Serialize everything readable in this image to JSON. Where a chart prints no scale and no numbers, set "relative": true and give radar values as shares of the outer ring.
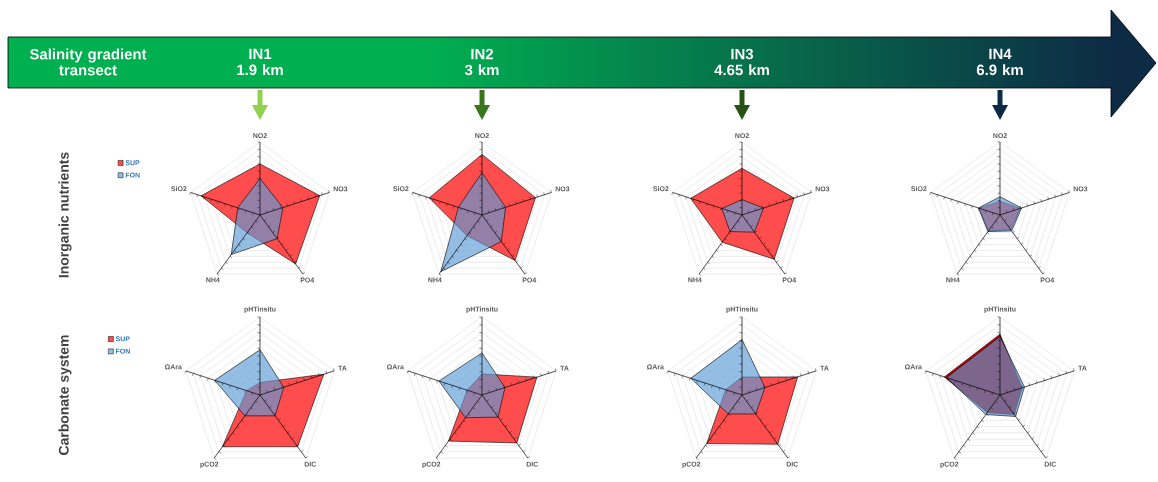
{
  "chart_data": [
    {
      "type": "other",
      "title": "Salinity gradient transect",
      "annotations": [
        "IN1 1.9 km",
        "IN2 3 km",
        "IN3 4.65 km",
        "IN4 6.9 km"
      ]
    },
    {
      "type": "radar",
      "ylabel": "Inorganic nutrients",
      "categories": [
        "NO2",
        "NO3",
        "PO4",
        "NH4",
        "SiO2"
      ],
      "relative": true,
      "grid": true,
      "legend": "top left",
      "series": [
        {
          "name": "SUP",
          "color": "#ff4d4d",
          "values": [
            0.7,
            0.86,
            0.83,
            0.3,
            0.85
          ]
        },
        {
          "name": "FON",
          "color": "#5b9bd5",
          "values": [
            0.5,
            0.33,
            0.4,
            0.67,
            0.32
          ]
        }
      ]
    },
    {
      "type": "radar",
      "categories": [
        "NO2",
        "NO3",
        "PO4",
        "NH4",
        "SiO2"
      ],
      "relative": true,
      "grid": true,
      "series": [
        {
          "color": "#ff4d4d",
          "values": [
            0.83,
            0.77,
            0.77,
            0.35,
            0.76
          ]
        },
        {
          "color": "#5b9bd5",
          "values": [
            0.58,
            0.34,
            0.45,
            0.96,
            0.34
          ]
        }
      ]
    },
    {
      "type": "radar",
      "categories": [
        "NO2",
        "NO3",
        "PO4",
        "NH4",
        "SiO2"
      ],
      "relative": true,
      "grid": true,
      "series": [
        {
          "color": "#ff4d4d",
          "values": [
            0.64,
            0.75,
            0.75,
            0.46,
            0.74
          ]
        },
        {
          "color": "#5b9bd5",
          "values": [
            0.21,
            0.31,
            0.29,
            0.28,
            0.29
          ]
        }
      ]
    },
    {
      "type": "radar",
      "categories": [
        "NO2",
        "NO3",
        "PO4",
        "NH4",
        "SiO2"
      ],
      "relative": true,
      "grid": true,
      "series": [
        {
          "color": "#ff4d4d",
          "values": [
            0.19,
            0.29,
            0.25,
            0.27,
            0.3
          ]
        },
        {
          "color": "#5b9bd5",
          "values": [
            0.25,
            0.31,
            0.27,
            0.28,
            0.31
          ]
        }
      ]
    },
    {
      "type": "radar",
      "ylabel": "Carbonate system",
      "categories": [
        "pHTinsitu",
        "TA",
        "DIC",
        "pCO2",
        "ΩAra"
      ],
      "relative": true,
      "grid": true,
      "legend": "top left",
      "series": [
        {
          "name": "SUP",
          "color": "#ff4d4d",
          "values": [
            0.16,
            0.86,
            0.82,
            0.82,
            0.18
          ]
        },
        {
          "name": "FON",
          "color": "#5b9bd5",
          "values": [
            0.58,
            0.32,
            0.33,
            0.33,
            0.61
          ]
        }
      ]
    },
    {
      "type": "radar",
      "categories": [
        "pHTinsitu",
        "TA",
        "DIC",
        "pCO2",
        "ΩAra"
      ],
      "relative": true,
      "grid": true,
      "series": [
        {
          "color": "#ff4d4d",
          "values": [
            0.27,
            0.74,
            0.76,
            0.73,
            0.2
          ]
        },
        {
          "color": "#5b9bd5",
          "values": [
            0.54,
            0.31,
            0.35,
            0.36,
            0.58
          ]
        }
      ]
    },
    {
      "type": "radar",
      "categories": [
        "pHTinsitu",
        "TA",
        "DIC",
        "pCO2",
        "ΩAra"
      ],
      "relative": true,
      "grid": true,
      "series": [
        {
          "color": "#ff4d4d",
          "values": [
            0.23,
            0.75,
            0.78,
            0.77,
            0.22
          ]
        },
        {
          "color": "#5b9bd5",
          "values": [
            0.71,
            0.31,
            0.3,
            0.3,
            0.69
          ]
        }
      ]
    },
    {
      "type": "radar",
      "categories": [
        "pHTinsitu",
        "TA",
        "DIC",
        "pCO2",
        "ΩAra"
      ],
      "relative": true,
      "grid": true,
      "series": [
        {
          "color": "#c00000",
          "values": [
            0.78,
            0.3,
            0.31,
            0.28,
            0.75
          ]
        },
        {
          "color": "#5b9bd5",
          "values": [
            0.75,
            0.33,
            0.34,
            0.31,
            0.72
          ]
        }
      ]
    }
  ]
}
